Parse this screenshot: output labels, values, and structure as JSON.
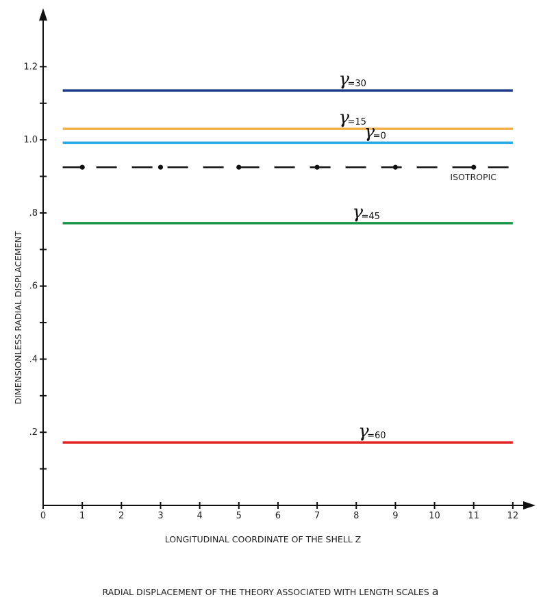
{
  "chart_data": {
    "type": "line",
    "title": "",
    "xlabel": "LONGITUDINAL COORDINATE OF THE SHELL Z",
    "ylabel": "DIMENSIONLESS RADIAL DISPLACEMENT",
    "xlim": [
      0,
      12.3
    ],
    "ylim": [
      0,
      1.33
    ],
    "x_ticks": [
      0,
      1,
      2,
      3,
      4,
      5,
      6,
      7,
      8,
      9,
      10,
      11,
      12
    ],
    "x_tick_labels": [
      "0",
      "1",
      "2",
      "3",
      "4",
      "5",
      "6",
      "7",
      "8",
      "9",
      "10",
      "11",
      "12"
    ],
    "y_minor_ticks": [
      0.1,
      0.2,
      0.3,
      0.4,
      0.5,
      0.6,
      0.7,
      0.8,
      0.9,
      1.0,
      1.1,
      1.2
    ],
    "y_ticks": [
      0.2,
      0.4,
      0.6,
      0.8,
      1.0,
      1.2
    ],
    "y_tick_labels": [
      ".2",
      ".4",
      ".6",
      ".8",
      "1.0",
      "1.2"
    ],
    "grid": false,
    "legend": "none",
    "series": [
      {
        "gamma_symbol": "γ",
        "label_suffix": "=30",
        "x": [
          0.5,
          12
        ],
        "y": [
          1.135,
          1.135
        ],
        "color": "#1f3a8a",
        "dash": "solid",
        "label_x": 7.55
      },
      {
        "gamma_symbol": "γ",
        "label_suffix": "=15",
        "x": [
          0.5,
          12
        ],
        "y": [
          1.03,
          1.03
        ],
        "color": "#f2b04a",
        "dash": "solid",
        "label_x": 7.55
      },
      {
        "gamma_symbol": "γ",
        "label_suffix": "=0",
        "x": [
          0.5,
          12
        ],
        "y": [
          0.992,
          0.992
        ],
        "color": "#27a9e1",
        "dash": "solid",
        "label_x": 8.2
      },
      {
        "gamma_symbol": "γ",
        "label_suffix": "=45",
        "x": [
          0.5,
          12
        ],
        "y": [
          0.772,
          0.772
        ],
        "color": "#1a9447",
        "dash": "solid",
        "label_x": 7.9
      },
      {
        "gamma_symbol": "γ",
        "label_suffix": "=60",
        "x": [
          0.5,
          12
        ],
        "y": [
          0.172,
          0.172
        ],
        "color": "#e02424",
        "dash": "solid",
        "label_x": 8.05
      },
      {
        "x": [
          0.5,
          12
        ],
        "y": [
          0.925,
          0.925
        ],
        "color": "#111111",
        "dash": "dash-dot",
        "dot_x": [
          1,
          3,
          5,
          7,
          9,
          11
        ]
      }
    ],
    "annotations": [
      {
        "text": "ISOTROPIC",
        "x": 10.4,
        "y": 0.89
      }
    ]
  },
  "caption": {
    "text": "RADIAL DISPLACEMENT OF THE THEORY ASSOCIATED WITH LENGTH SCALES",
    "symbol": "a"
  }
}
